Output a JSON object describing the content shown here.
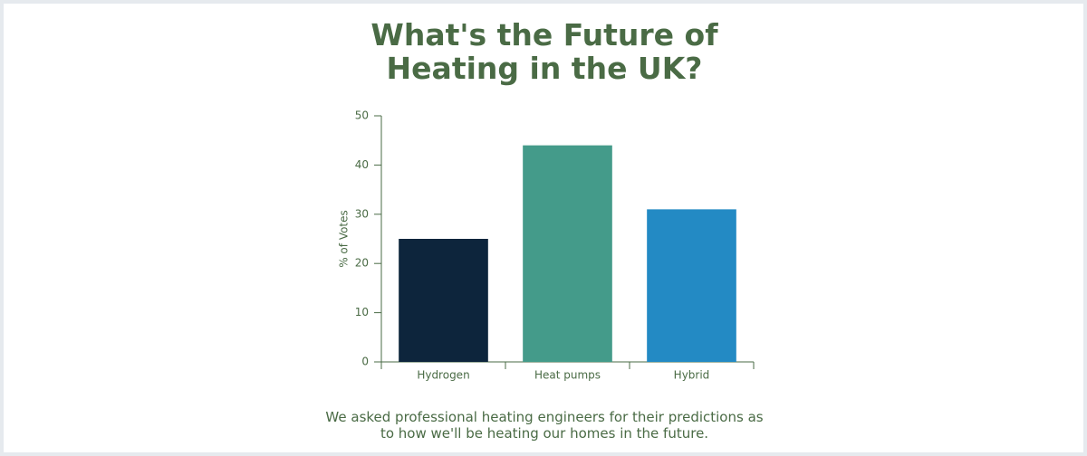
{
  "chart_data": {
    "type": "bar",
    "title": "What's the Future of Heating in the UK?",
    "subtitle": "We asked professional heating engineers for their predictions as to how we'll be heating our homes in the future.",
    "y_label": "% of Votes",
    "categories": [
      "Hydrogen",
      "Heat pumps",
      "Hybrid"
    ],
    "values": [
      25,
      44,
      31
    ],
    "colors": [
      "#0d253c",
      "#449b8a",
      "#238ac4"
    ],
    "ylim": [
      0,
      50
    ],
    "yticks": [
      0,
      10,
      20,
      30,
      40,
      50
    ],
    "grid": false
  }
}
